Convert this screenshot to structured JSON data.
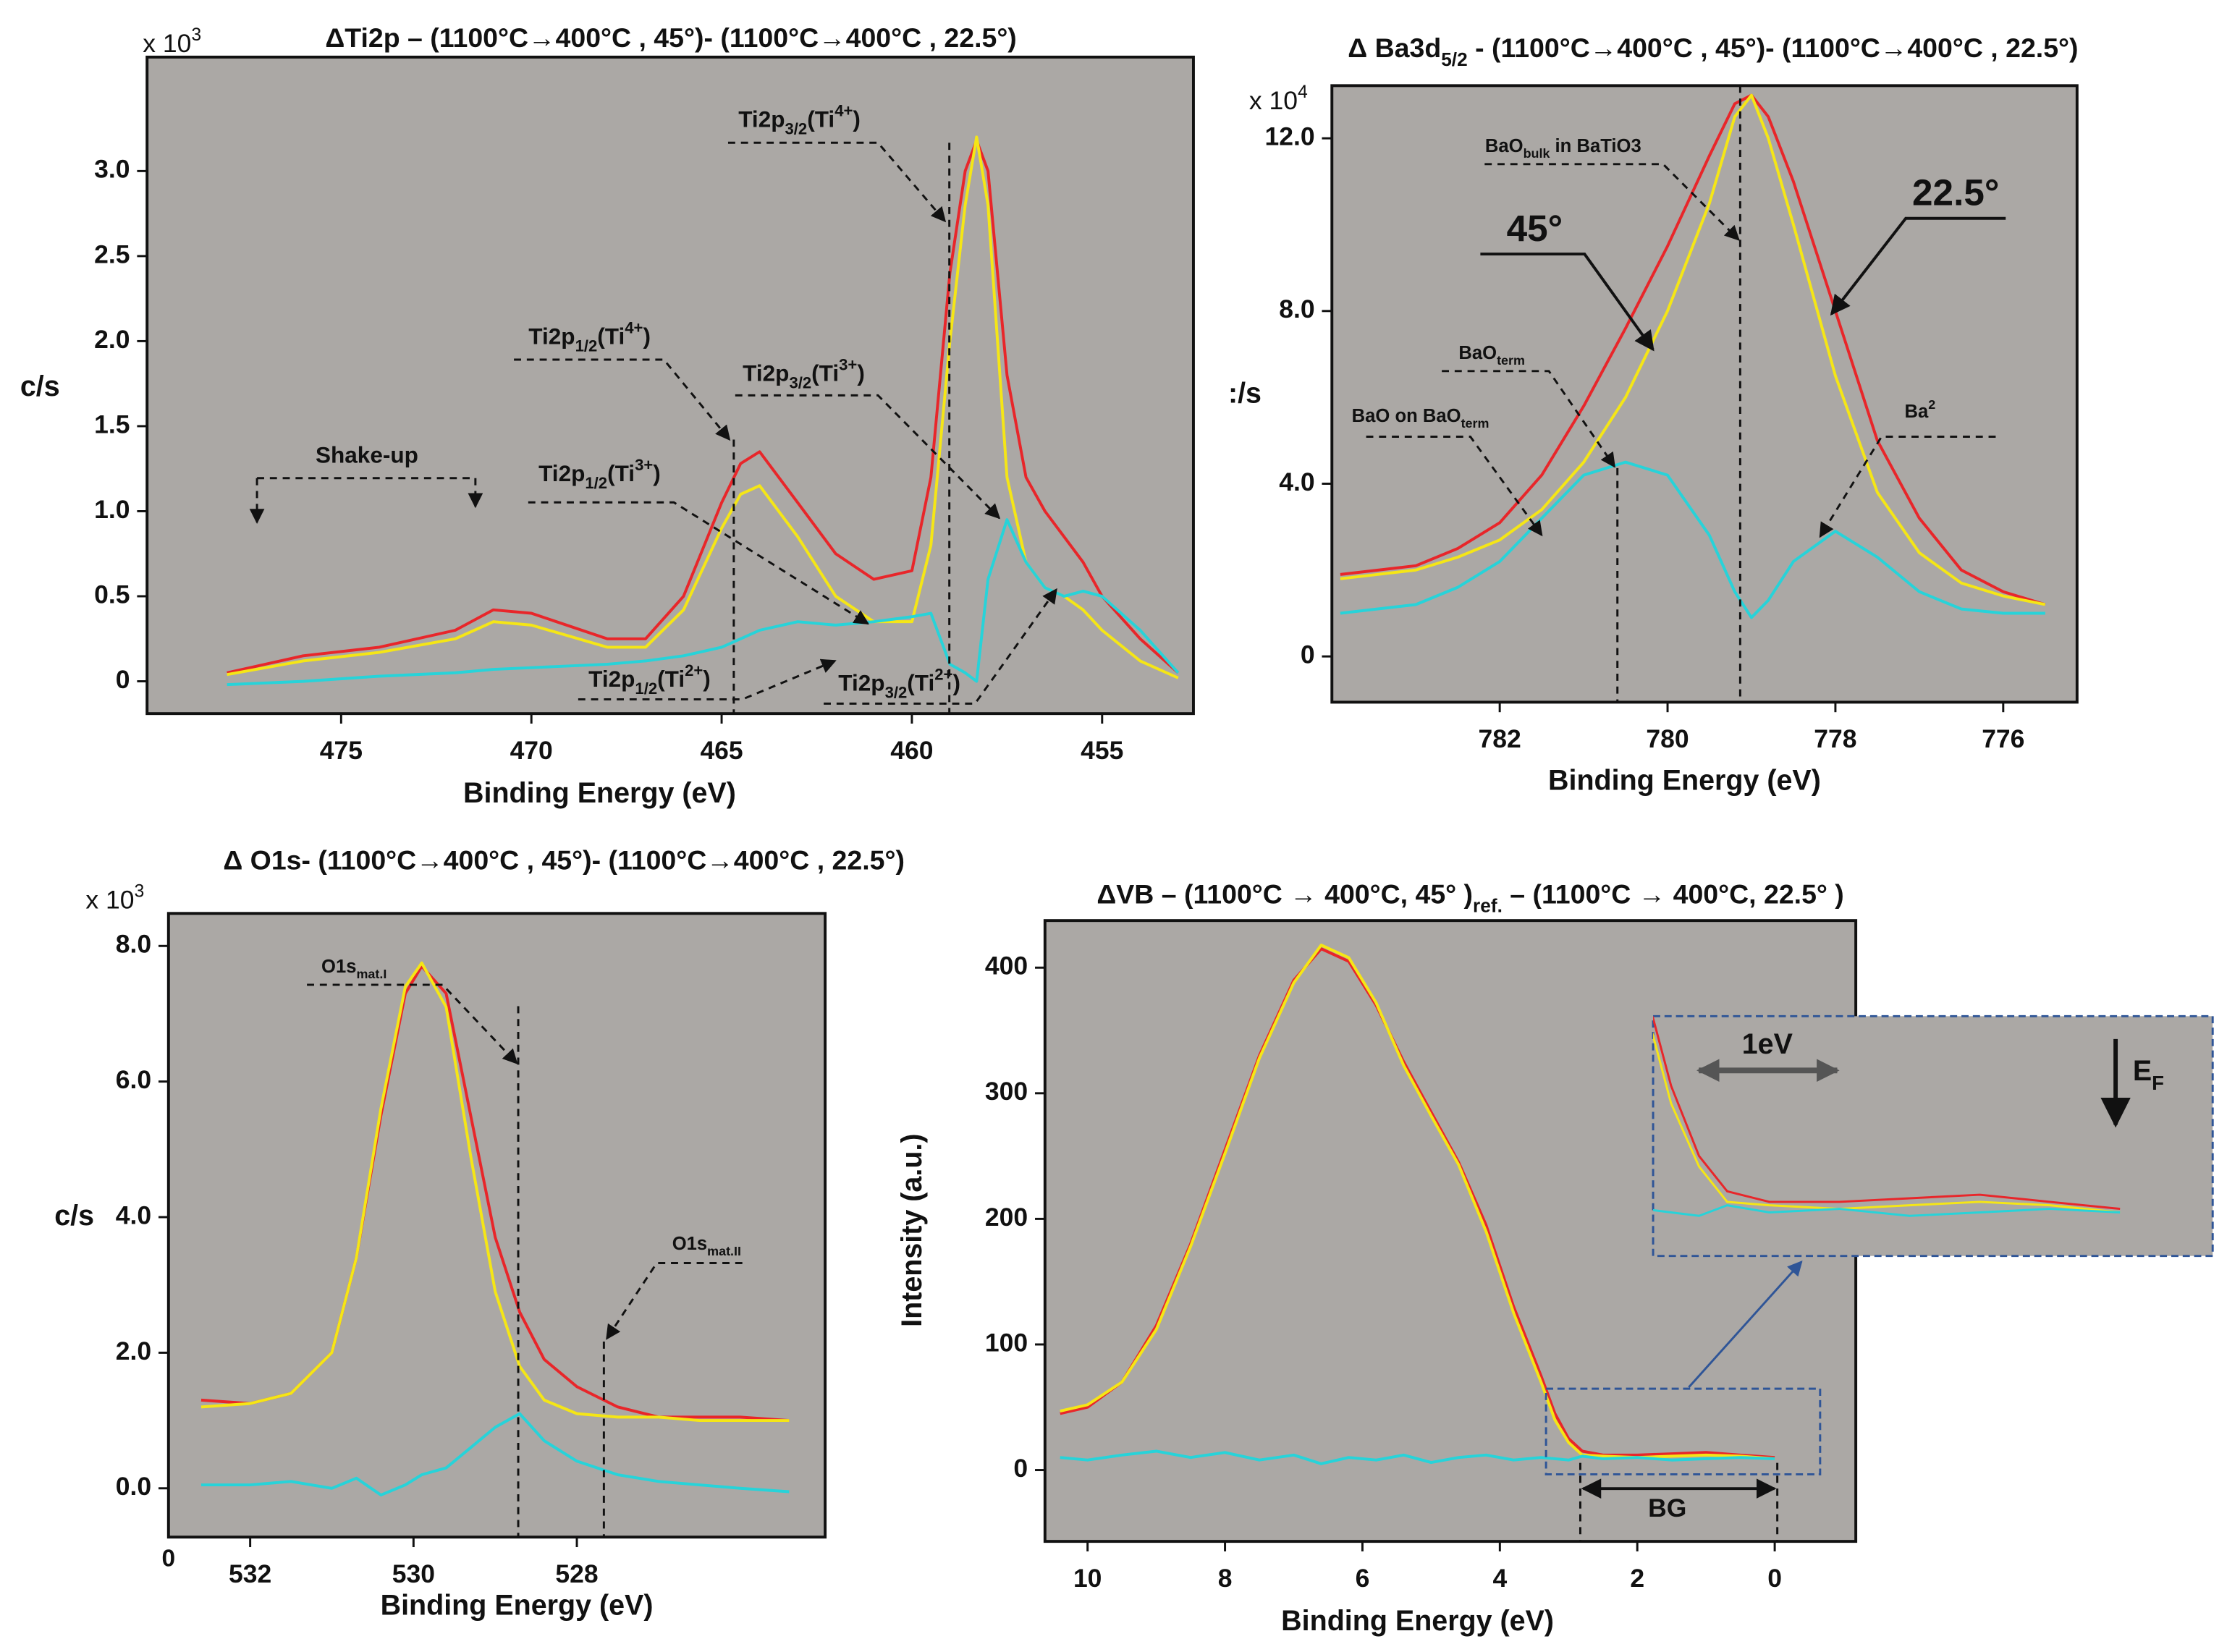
{
  "chart_data": [
    {
      "type": "line",
      "title": [
        {
          "text": "ΔTi2p – (1100°C→400°C , 45°)- (1100°C→400°C , 22.5°)"
        }
      ],
      "y_multiplier": [
        {
          "text": "x 10"
        },
        {
          "sup": "3"
        }
      ],
      "xlabel": "Binding Energy (eV)",
      "ylabel": "c/s",
      "xlim": [
        480.1,
        452.6
      ],
      "ylim": [
        -0.19,
        3.67
      ],
      "xticks": [
        475,
        470,
        465,
        460,
        455
      ],
      "yticks": [
        0,
        0.5,
        {
          "value": 1,
          "label": "1.0"
        },
        1.5,
        {
          "value": 2,
          "label": "2.0"
        },
        2.5,
        {
          "value": 3,
          "label": "3.0"
        }
      ],
      "x": [
        478,
        476,
        474,
        472,
        471,
        470,
        468,
        467,
        466,
        465,
        464.5,
        464,
        463,
        462,
        461,
        460,
        459.5,
        459,
        458.6,
        458.3,
        458,
        457.5,
        457,
        456.5,
        456,
        455.5,
        455,
        454,
        453
      ],
      "series": [
        {
          "color": "#e8262a",
          "values": [
            0.05,
            0.15,
            0.2,
            0.3,
            0.42,
            0.4,
            0.25,
            0.25,
            0.5,
            1.05,
            1.28,
            1.35,
            1.05,
            0.75,
            0.6,
            0.65,
            1.2,
            2.4,
            3.0,
            3.18,
            3.0,
            1.8,
            1.2,
            1.0,
            0.85,
            0.7,
            0.5,
            0.25,
            0.05
          ]
        },
        {
          "color": "#f5e616",
          "values": [
            0.04,
            0.12,
            0.17,
            0.25,
            0.35,
            0.33,
            0.2,
            0.2,
            0.42,
            0.9,
            1.1,
            1.15,
            0.85,
            0.5,
            0.35,
            0.35,
            0.8,
            2.0,
            2.8,
            3.2,
            2.8,
            1.2,
            0.7,
            0.55,
            0.5,
            0.42,
            0.3,
            0.12,
            0.02
          ]
        },
        {
          "color": "#27d3d9",
          "values": [
            -0.02,
            0.0,
            0.03,
            0.05,
            0.07,
            0.08,
            0.1,
            0.12,
            0.15,
            0.2,
            0.25,
            0.3,
            0.35,
            0.33,
            0.35,
            0.38,
            0.4,
            0.1,
            0.05,
            0.0,
            0.6,
            0.95,
            0.7,
            0.55,
            0.5,
            0.53,
            0.5,
            0.3,
            0.05
          ]
        }
      ],
      "annotations": [
        [
          {
            "text": "Ti2p"
          },
          {
            "sub": "3/2"
          },
          {
            "text": "(Ti"
          },
          {
            "sup": "4+"
          },
          {
            "text": ")"
          }
        ],
        [
          {
            "text": "Ti2p"
          },
          {
            "sub": "1/2"
          },
          {
            "text": "(Ti"
          },
          {
            "sup": "4+"
          },
          {
            "text": ")"
          }
        ],
        [
          {
            "text": "Ti2p"
          },
          {
            "sub": "3/2"
          },
          {
            "text": "(Ti"
          },
          {
            "sup": "3+"
          },
          {
            "text": ")"
          }
        ],
        [
          {
            "text": "Ti2p"
          },
          {
            "sub": "1/2"
          },
          {
            "text": "(Ti"
          },
          {
            "sup": "3+"
          },
          {
            "text": ")"
          }
        ],
        [
          {
            "text": "Ti2p"
          },
          {
            "sub": "1/2"
          },
          {
            "text": "(Ti"
          },
          {
            "sup": "2+"
          },
          {
            "text": ")"
          }
        ],
        [
          {
            "text": "Ti2p"
          },
          {
            "sub": "3/2"
          },
          {
            "text": "(Ti"
          },
          {
            "sup": "2+"
          },
          {
            "text": ")"
          }
        ],
        "Shake-up"
      ]
    },
    {
      "type": "line",
      "title": [
        {
          "text": "Δ Ba3d"
        },
        {
          "sub": "5/2"
        },
        {
          "text": " - (1100°C→400°C , 45°)- (1100°C→400°C , 22.5°)"
        }
      ],
      "y_multiplier": [
        {
          "text": "x 10"
        },
        {
          "sup": "4"
        }
      ],
      "xlabel": "Binding Energy (eV)",
      "ylabel": ":/s",
      "xlim": [
        784,
        775.12
      ],
      "ylim": [
        -1.06,
        13.22
      ],
      "xticks": [
        782,
        780,
        778,
        776
      ],
      "yticks": [
        0,
        {
          "value": 4,
          "label": "4.0"
        },
        {
          "value": 8,
          "label": "8.0"
        },
        {
          "value": 12,
          "label": "12.0"
        }
      ],
      "x": [
        783.9,
        783,
        782.5,
        782,
        781.5,
        781,
        780.5,
        780,
        779.5,
        779.2,
        779,
        778.8,
        778.5,
        778,
        777.5,
        777,
        776.5,
        776,
        775.5
      ],
      "series": [
        {
          "color": "#e8262a",
          "values": [
            1.9,
            2.1,
            2.5,
            3.1,
            4.2,
            5.8,
            7.6,
            9.5,
            11.6,
            12.8,
            13.0,
            12.5,
            11,
            8,
            5,
            3.2,
            2.0,
            1.5,
            1.2
          ]
        },
        {
          "color": "#f5e616",
          "values": [
            1.8,
            2.0,
            2.3,
            2.7,
            3.4,
            4.5,
            6.0,
            8.0,
            10.5,
            12.5,
            13.0,
            12,
            10,
            6.5,
            3.8,
            2.4,
            1.7,
            1.4,
            1.2
          ]
        },
        {
          "color": "#27d3d9",
          "values": [
            1.0,
            1.2,
            1.6,
            2.2,
            3.2,
            4.2,
            4.5,
            4.2,
            2.8,
            1.5,
            0.9,
            1.3,
            2.2,
            2.9,
            2.3,
            1.5,
            1.1,
            1.0,
            1.0
          ]
        }
      ],
      "annotations": [
        [
          {
            "text": "BaO"
          },
          {
            "sub": "bulk"
          },
          {
            "text": " in BaTiO3"
          }
        ],
        "45°",
        "22.5°",
        [
          {
            "text": "BaO"
          },
          {
            "sub": "term"
          }
        ],
        [
          {
            "text": "BaO on BaO"
          },
          {
            "sub": "term"
          }
        ],
        [
          {
            "text": "Ba"
          },
          {
            "sup": "2"
          }
        ]
      ]
    },
    {
      "type": "line",
      "title": [
        {
          "text": "Δ O1s- (1100°C→400°C , 45°)- (1100°C→400°C , 22.5°)"
        }
      ],
      "y_multiplier": [
        {
          "text": "x 10"
        },
        {
          "sup": "3"
        }
      ],
      "xlabel": "Binding Energy (eV)",
      "ylabel": "c/s",
      "xlim": [
        533,
        524.96
      ],
      "ylim": [
        -0.72,
        8.48
      ],
      "xticks": [
        532,
        530,
        528
      ],
      "yticks": [
        {
          "value": 0,
          "label": "0.0"
        },
        {
          "value": 2,
          "label": "2.0"
        },
        {
          "value": 4,
          "label": "4.0"
        },
        {
          "value": 6,
          "label": "6.0"
        },
        {
          "value": 8,
          "label": "8.0"
        }
      ],
      "x": [
        532.6,
        532,
        531.5,
        531,
        530.7,
        530.4,
        530.1,
        529.9,
        529.6,
        529.3,
        529,
        528.7,
        528.4,
        528,
        527.5,
        527,
        526.5,
        526,
        525.4
      ],
      "series": [
        {
          "color": "#e8262a",
          "values": [
            1.3,
            1.25,
            1.4,
            2.0,
            3.4,
            5.5,
            7.3,
            7.7,
            7.3,
            5.5,
            3.7,
            2.6,
            1.9,
            1.5,
            1.2,
            1.05,
            1.05,
            1.05,
            1.0
          ]
        },
        {
          "color": "#f5e616",
          "values": [
            1.2,
            1.25,
            1.4,
            2.0,
            3.4,
            5.6,
            7.4,
            7.75,
            7.1,
            4.9,
            2.9,
            1.8,
            1.3,
            1.1,
            1.05,
            1.05,
            1.0,
            1.0,
            1.0
          ]
        },
        {
          "color": "#27d3d9",
          "values": [
            0.05,
            0.05,
            0.1,
            0.0,
            0.15,
            -0.1,
            0.05,
            0.2,
            0.3,
            0.6,
            0.9,
            1.1,
            0.7,
            0.4,
            0.2,
            0.1,
            0.05,
            0.0,
            -0.05
          ]
        }
      ],
      "annotations": [
        [
          {
            "text": "O1s"
          },
          {
            "sub": "mat.I"
          }
        ],
        [
          {
            "text": "O1s"
          },
          {
            "sub": "mat.II"
          }
        ],
        "0"
      ]
    },
    {
      "type": "line",
      "title": [
        {
          "text": "ΔVB – (1100°C → 400°C, 45° )"
        },
        {
          "sub": "ref."
        },
        {
          "text": " – (1100°C → 400°C, 22.5° )"
        }
      ],
      "xlabel": "Binding Energy (eV)",
      "ylabel": "Intensity (a.u.)",
      "xlim": [
        10.62,
        -1.18
      ],
      "ylim": [
        -56.8,
        437.5
      ],
      "xticks": [
        10,
        8,
        6,
        4,
        2,
        0
      ],
      "yticks": [
        0,
        100,
        200,
        300,
        400
      ],
      "x": [
        10.4,
        10,
        9.5,
        9,
        8.5,
        8,
        7.5,
        7,
        6.6,
        6.2,
        5.8,
        5.4,
        5,
        4.6,
        4.2,
        3.8,
        3.4,
        3.2,
        3,
        2.8,
        2.5,
        2,
        1.5,
        1,
        0.5,
        0
      ],
      "series": [
        {
          "color": "#e8262a",
          "values": [
            45,
            50,
            70,
            115,
            180,
            255,
            330,
            390,
            415,
            405,
            370,
            325,
            285,
            245,
            195,
            130,
            75,
            45,
            25,
            15,
            12,
            12,
            13,
            14,
            12,
            10
          ]
        },
        {
          "color": "#f5e616",
          "values": [
            47,
            52,
            70,
            112,
            178,
            252,
            328,
            388,
            418,
            408,
            372,
            322,
            282,
            243,
            190,
            125,
            70,
            40,
            22,
            12,
            11,
            10,
            11,
            12,
            11,
            9
          ]
        },
        {
          "color": "#27d3d9",
          "values": [
            10,
            8,
            12,
            15,
            10,
            14,
            8,
            12,
            5,
            10,
            8,
            12,
            6,
            10,
            12,
            8,
            10,
            9,
            8,
            11,
            9,
            10,
            8,
            9,
            10,
            9
          ]
        }
      ],
      "annotations": [
        "1eV",
        [
          {
            "text": "E"
          },
          {
            "sub": "F"
          }
        ],
        "BG"
      ]
    }
  ]
}
